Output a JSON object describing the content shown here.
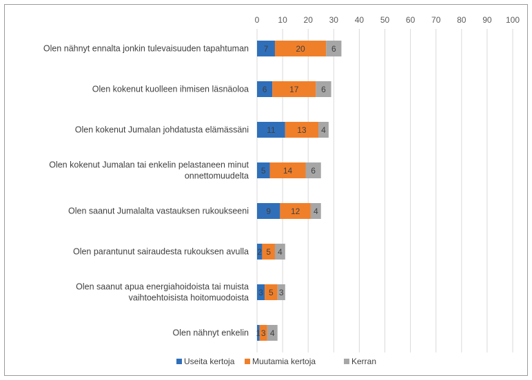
{
  "chart_data": {
    "type": "bar",
    "orientation": "horizontal",
    "stacked": true,
    "categories": [
      [
        "Olen nähnyt ennalta jonkin tulevaisuuden tapahtuman"
      ],
      [
        "Olen kokenut kuolleen ihmisen läsnäoloa"
      ],
      [
        "Olen kokenut Jumalan johdatusta elämässäni"
      ],
      [
        "Olen kokenut Jumalan tai enkelin pelastaneen minut",
        "onnettomuudelta"
      ],
      [
        "Olen saanut Jumalalta vastauksen rukoukseeni"
      ],
      [
        "Olen parantunut sairaudesta rukouksen avulla"
      ],
      [
        "Olen saanut apua energiahoidoista tai muista",
        "vaihtoehtoisista hoitomuodoista"
      ],
      [
        "Olen nähnyt enkelin"
      ]
    ],
    "series": [
      {
        "name": "Useita kertoja",
        "color": "#2f6fba",
        "values": [
          7,
          6,
          11,
          5,
          9,
          2,
          3,
          1
        ]
      },
      {
        "name": "Muutamia kertoja",
        "color": "#f07f2a",
        "values": [
          20,
          17,
          13,
          14,
          12,
          5,
          5,
          3
        ]
      },
      {
        "name": "Kerran",
        "color": "#a6a6a6",
        "values": [
          6,
          6,
          4,
          6,
          4,
          4,
          3,
          4
        ]
      }
    ],
    "xlim": [
      0,
      100
    ],
    "xticks": [
      0,
      10,
      20,
      30,
      40,
      50,
      60,
      70,
      80,
      90,
      100
    ],
    "x_axis_position": "top",
    "grid": true,
    "data_labels": true,
    "legend_position": "bottom"
  }
}
